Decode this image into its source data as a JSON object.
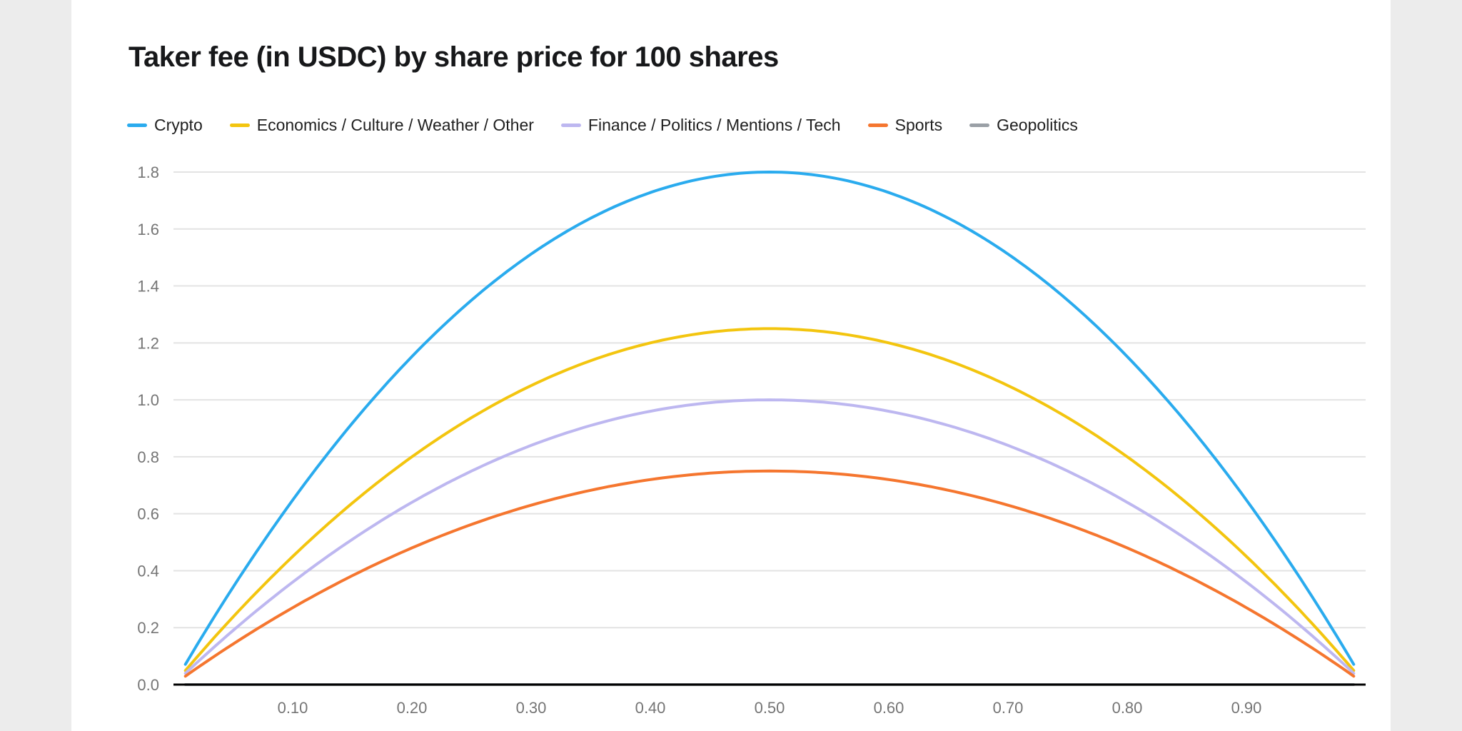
{
  "page": {
    "background_color": "#ececec",
    "panel_background_color": "#ffffff"
  },
  "chart": {
    "title": "Taker fee (in USDC) by share price for 100 shares"
  },
  "chart_data": {
    "type": "line",
    "title": "Taker fee (in USDC) by share price for 100 shares",
    "xlabel": "",
    "ylabel": "",
    "xlim": [
      0,
      1
    ],
    "ylim": [
      0,
      1.8
    ],
    "x_domain": [
      0.01,
      0.99
    ],
    "grid": "horizontal",
    "legend_position": "top",
    "axis_color": "#000000",
    "grid_color": "#e3e3e3",
    "tick_label_color": "#757575",
    "x_tick_values": [
      0.1,
      0.2,
      0.3,
      0.4,
      0.5,
      0.6,
      0.7,
      0.8,
      0.9
    ],
    "x_tick_labels": [
      "0.10",
      "0.20",
      "0.30",
      "0.40",
      "0.50",
      "0.60",
      "0.70",
      "0.80",
      "0.90"
    ],
    "y_tick_values": [
      0,
      0.2,
      0.4,
      0.6,
      0.8,
      1.0,
      1.2,
      1.4,
      1.6,
      1.8
    ],
    "y_tick_labels": [
      "0.0",
      "0.2",
      "0.4",
      "0.6",
      "0.8",
      "1.0",
      "1.2",
      "1.4",
      "1.6",
      "1.8"
    ],
    "curve_formula": "fee(p) = 4 * peak * p * (1 - p), for p in [0.01, 0.99]",
    "categories": [
      0.1,
      0.2,
      0.3,
      0.4,
      0.5,
      0.6,
      0.7,
      0.8,
      0.9
    ],
    "series": [
      {
        "name": "Crypto",
        "color": "#2aabee",
        "peak": 1.8,
        "values": [
          0.648,
          1.152,
          1.512,
          1.728,
          1.8,
          1.728,
          1.512,
          1.152,
          0.648
        ]
      },
      {
        "name": "Economics / Culture / Weather / Other",
        "color": "#f3c50f",
        "peak": 1.25,
        "values": [
          0.45,
          0.8,
          1.05,
          1.2,
          1.25,
          1.2,
          1.05,
          0.8,
          0.45
        ]
      },
      {
        "name": "Finance / Politics / Mentions / Tech",
        "color": "#bdb7f0",
        "peak": 1.0,
        "values": [
          0.36,
          0.64,
          0.84,
          0.96,
          1.0,
          0.96,
          0.84,
          0.64,
          0.36
        ]
      },
      {
        "name": "Sports",
        "color": "#f5762f",
        "peak": 0.75,
        "values": [
          0.27,
          0.48,
          0.63,
          0.72,
          0.75,
          0.72,
          0.63,
          0.48,
          0.27
        ]
      },
      {
        "name": "Geopolitics",
        "color": "#9aa0a6",
        "peak": 0,
        "values": [
          0,
          0,
          0,
          0,
          0,
          0,
          0,
          0,
          0
        ]
      }
    ]
  }
}
